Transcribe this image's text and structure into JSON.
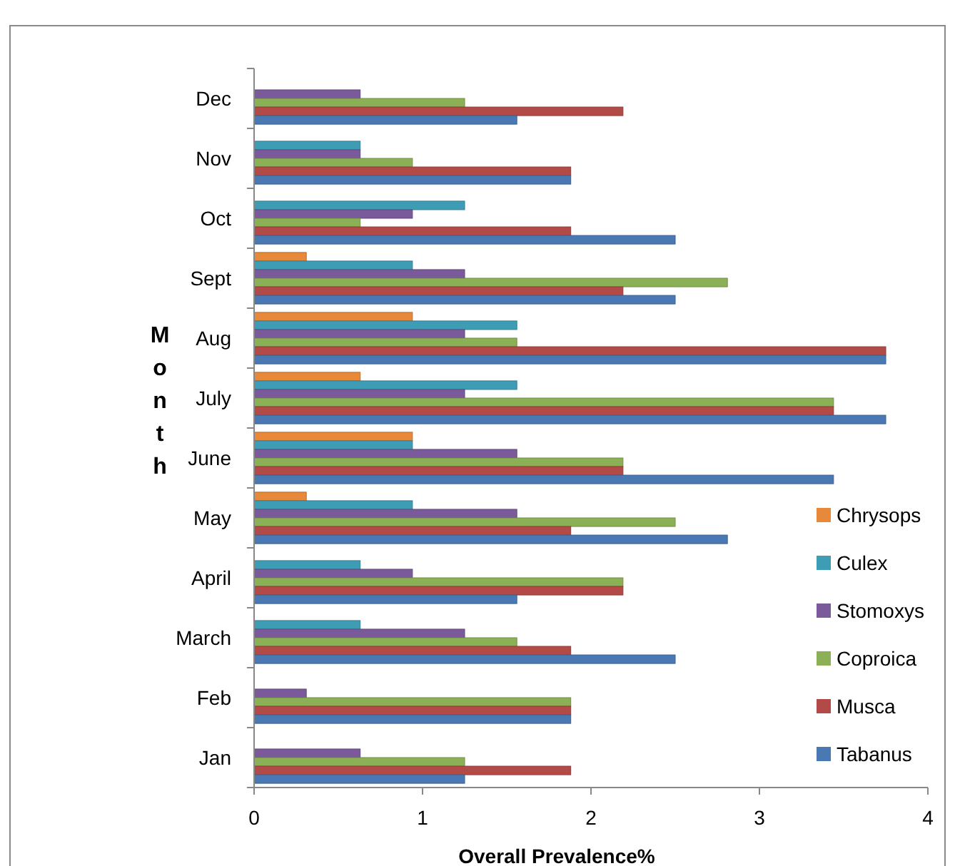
{
  "chart_data": {
    "type": "bar",
    "orientation": "horizontal",
    "xlabel": "Overall Prevalence%",
    "ylabel": "Month",
    "categories": [
      "Dec",
      "Nov",
      "Oct",
      "Sept",
      "Aug",
      "July",
      "June",
      "May",
      "April",
      "March",
      "Feb",
      "Jan"
    ],
    "series": [
      {
        "name": "Chrysops",
        "color": "#e8883a",
        "values": [
          0,
          0,
          0,
          0.31,
          0.94,
          0.63,
          0.94,
          0.31,
          0,
          0,
          0,
          0
        ]
      },
      {
        "name": "Culex",
        "color": "#3f9cb5",
        "values": [
          0,
          0.63,
          1.25,
          0.94,
          1.56,
          1.56,
          0.94,
          0.94,
          0.63,
          0.63,
          0,
          0
        ]
      },
      {
        "name": "Stomoxys",
        "color": "#7a5a9a",
        "values": [
          0.63,
          0.63,
          0.94,
          1.25,
          1.25,
          1.25,
          1.56,
          1.56,
          0.94,
          1.25,
          0.31,
          0.63
        ]
      },
      {
        "name": "Coproica",
        "color": "#8cb055",
        "values": [
          1.25,
          0.94,
          0.63,
          2.81,
          1.56,
          3.44,
          2.19,
          2.5,
          2.19,
          1.56,
          1.88,
          1.25
        ]
      },
      {
        "name": "Musca",
        "color": "#b24a47",
        "values": [
          2.19,
          1.88,
          1.88,
          2.19,
          3.75,
          3.44,
          2.19,
          1.88,
          2.19,
          1.88,
          1.88,
          1.88
        ]
      },
      {
        "name": "Tabanus",
        "color": "#4a78b2",
        "values": [
          1.56,
          1.88,
          2.5,
          2.5,
          3.75,
          3.75,
          3.44,
          2.81,
          1.56,
          2.5,
          1.88,
          1.25
        ]
      }
    ],
    "xlim": [
      0,
      4
    ],
    "xticks": [
      0,
      1,
      2,
      3,
      4
    ],
    "grid": false,
    "legend": "right"
  }
}
